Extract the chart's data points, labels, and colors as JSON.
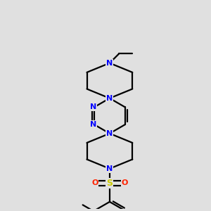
{
  "bg_color": "#e0e0e0",
  "bond_color": "#000000",
  "N_color": "#0000ff",
  "S_color": "#cccc00",
  "O_color": "#ff2200",
  "line_width": 1.6,
  "fig_width": 3.0,
  "fig_height": 3.0,
  "dpi": 100,
  "xlim": [
    -3.5,
    3.5
  ],
  "ylim": [
    -4.5,
    5.5
  ]
}
